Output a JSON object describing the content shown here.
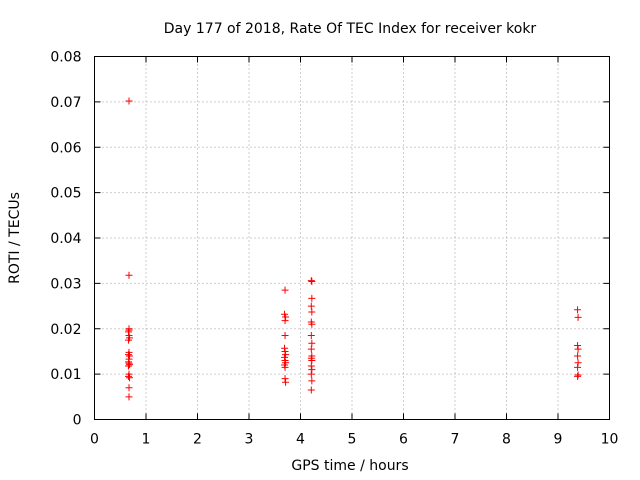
{
  "chart_data": {
    "type": "scatter",
    "title": "Day 177 of 2018, Rate Of TEC Index for receiver kokr",
    "xlabel": "GPS time / hours",
    "ylabel": "ROTI / TECUs",
    "xlim": [
      0,
      10
    ],
    "ylim": [
      0,
      0.08
    ],
    "grid": true,
    "marker": "+",
    "color": "#ff0000",
    "x_ticks": [
      0,
      1,
      2,
      3,
      4,
      5,
      6,
      7,
      8,
      9,
      10
    ],
    "x_tick_labels": [
      "0",
      "1",
      "2",
      "3",
      "4",
      "5",
      "6",
      "7",
      "8",
      "9",
      "10"
    ],
    "y_ticks": [
      0,
      0.01,
      0.02,
      0.03,
      0.04,
      0.05,
      0.06,
      0.07,
      0.08
    ],
    "y_tick_labels": [
      "0",
      "0.01",
      "0.02",
      "0.03",
      "0.04",
      "0.05",
      "0.06",
      "0.07",
      "0.08"
    ],
    "series": [
      {
        "name": "ROTI",
        "points": [
          [
            0.67,
            0.0702
          ],
          [
            0.67,
            0.0318
          ],
          [
            0.67,
            0.02
          ],
          [
            0.67,
            0.0197
          ],
          [
            0.66,
            0.0193
          ],
          [
            0.67,
            0.0185
          ],
          [
            0.68,
            0.018
          ],
          [
            0.66,
            0.0175
          ],
          [
            0.67,
            0.0148
          ],
          [
            0.66,
            0.0143
          ],
          [
            0.68,
            0.014
          ],
          [
            0.67,
            0.0133
          ],
          [
            0.66,
            0.0127
          ],
          [
            0.67,
            0.0124
          ],
          [
            0.68,
            0.0121
          ],
          [
            0.66,
            0.0118
          ],
          [
            0.67,
            0.01
          ],
          [
            0.66,
            0.0095
          ],
          [
            0.68,
            0.0092
          ],
          [
            0.67,
            0.007
          ],
          [
            0.67,
            0.005
          ],
          [
            3.7,
            0.0285
          ],
          [
            3.69,
            0.0232
          ],
          [
            3.71,
            0.0226
          ],
          [
            3.7,
            0.0218
          ],
          [
            3.7,
            0.0185
          ],
          [
            3.69,
            0.0157
          ],
          [
            3.7,
            0.015
          ],
          [
            3.71,
            0.0143
          ],
          [
            3.69,
            0.0137
          ],
          [
            3.7,
            0.013
          ],
          [
            3.71,
            0.0125
          ],
          [
            3.69,
            0.012
          ],
          [
            3.7,
            0.0115
          ],
          [
            3.7,
            0.009
          ],
          [
            3.71,
            0.0082
          ],
          [
            4.21,
            0.0306
          ],
          [
            4.22,
            0.0304
          ],
          [
            4.22,
            0.0267
          ],
          [
            4.21,
            0.025
          ],
          [
            4.22,
            0.0237
          ],
          [
            4.21,
            0.0215
          ],
          [
            4.22,
            0.021
          ],
          [
            4.21,
            0.0185
          ],
          [
            4.22,
            0.0168
          ],
          [
            4.21,
            0.0155
          ],
          [
            4.22,
            0.014
          ],
          [
            4.21,
            0.0135
          ],
          [
            4.22,
            0.013
          ],
          [
            4.21,
            0.0118
          ],
          [
            4.22,
            0.011
          ],
          [
            4.21,
            0.01
          ],
          [
            4.22,
            0.0085
          ],
          [
            4.21,
            0.0065
          ],
          [
            9.38,
            0.0242
          ],
          [
            9.39,
            0.0225
          ],
          [
            9.38,
            0.0163
          ],
          [
            9.39,
            0.0155
          ],
          [
            9.38,
            0.014
          ],
          [
            9.39,
            0.0125
          ],
          [
            9.38,
            0.0115
          ],
          [
            9.39,
            0.0098
          ],
          [
            9.38,
            0.0095
          ]
        ]
      }
    ]
  }
}
